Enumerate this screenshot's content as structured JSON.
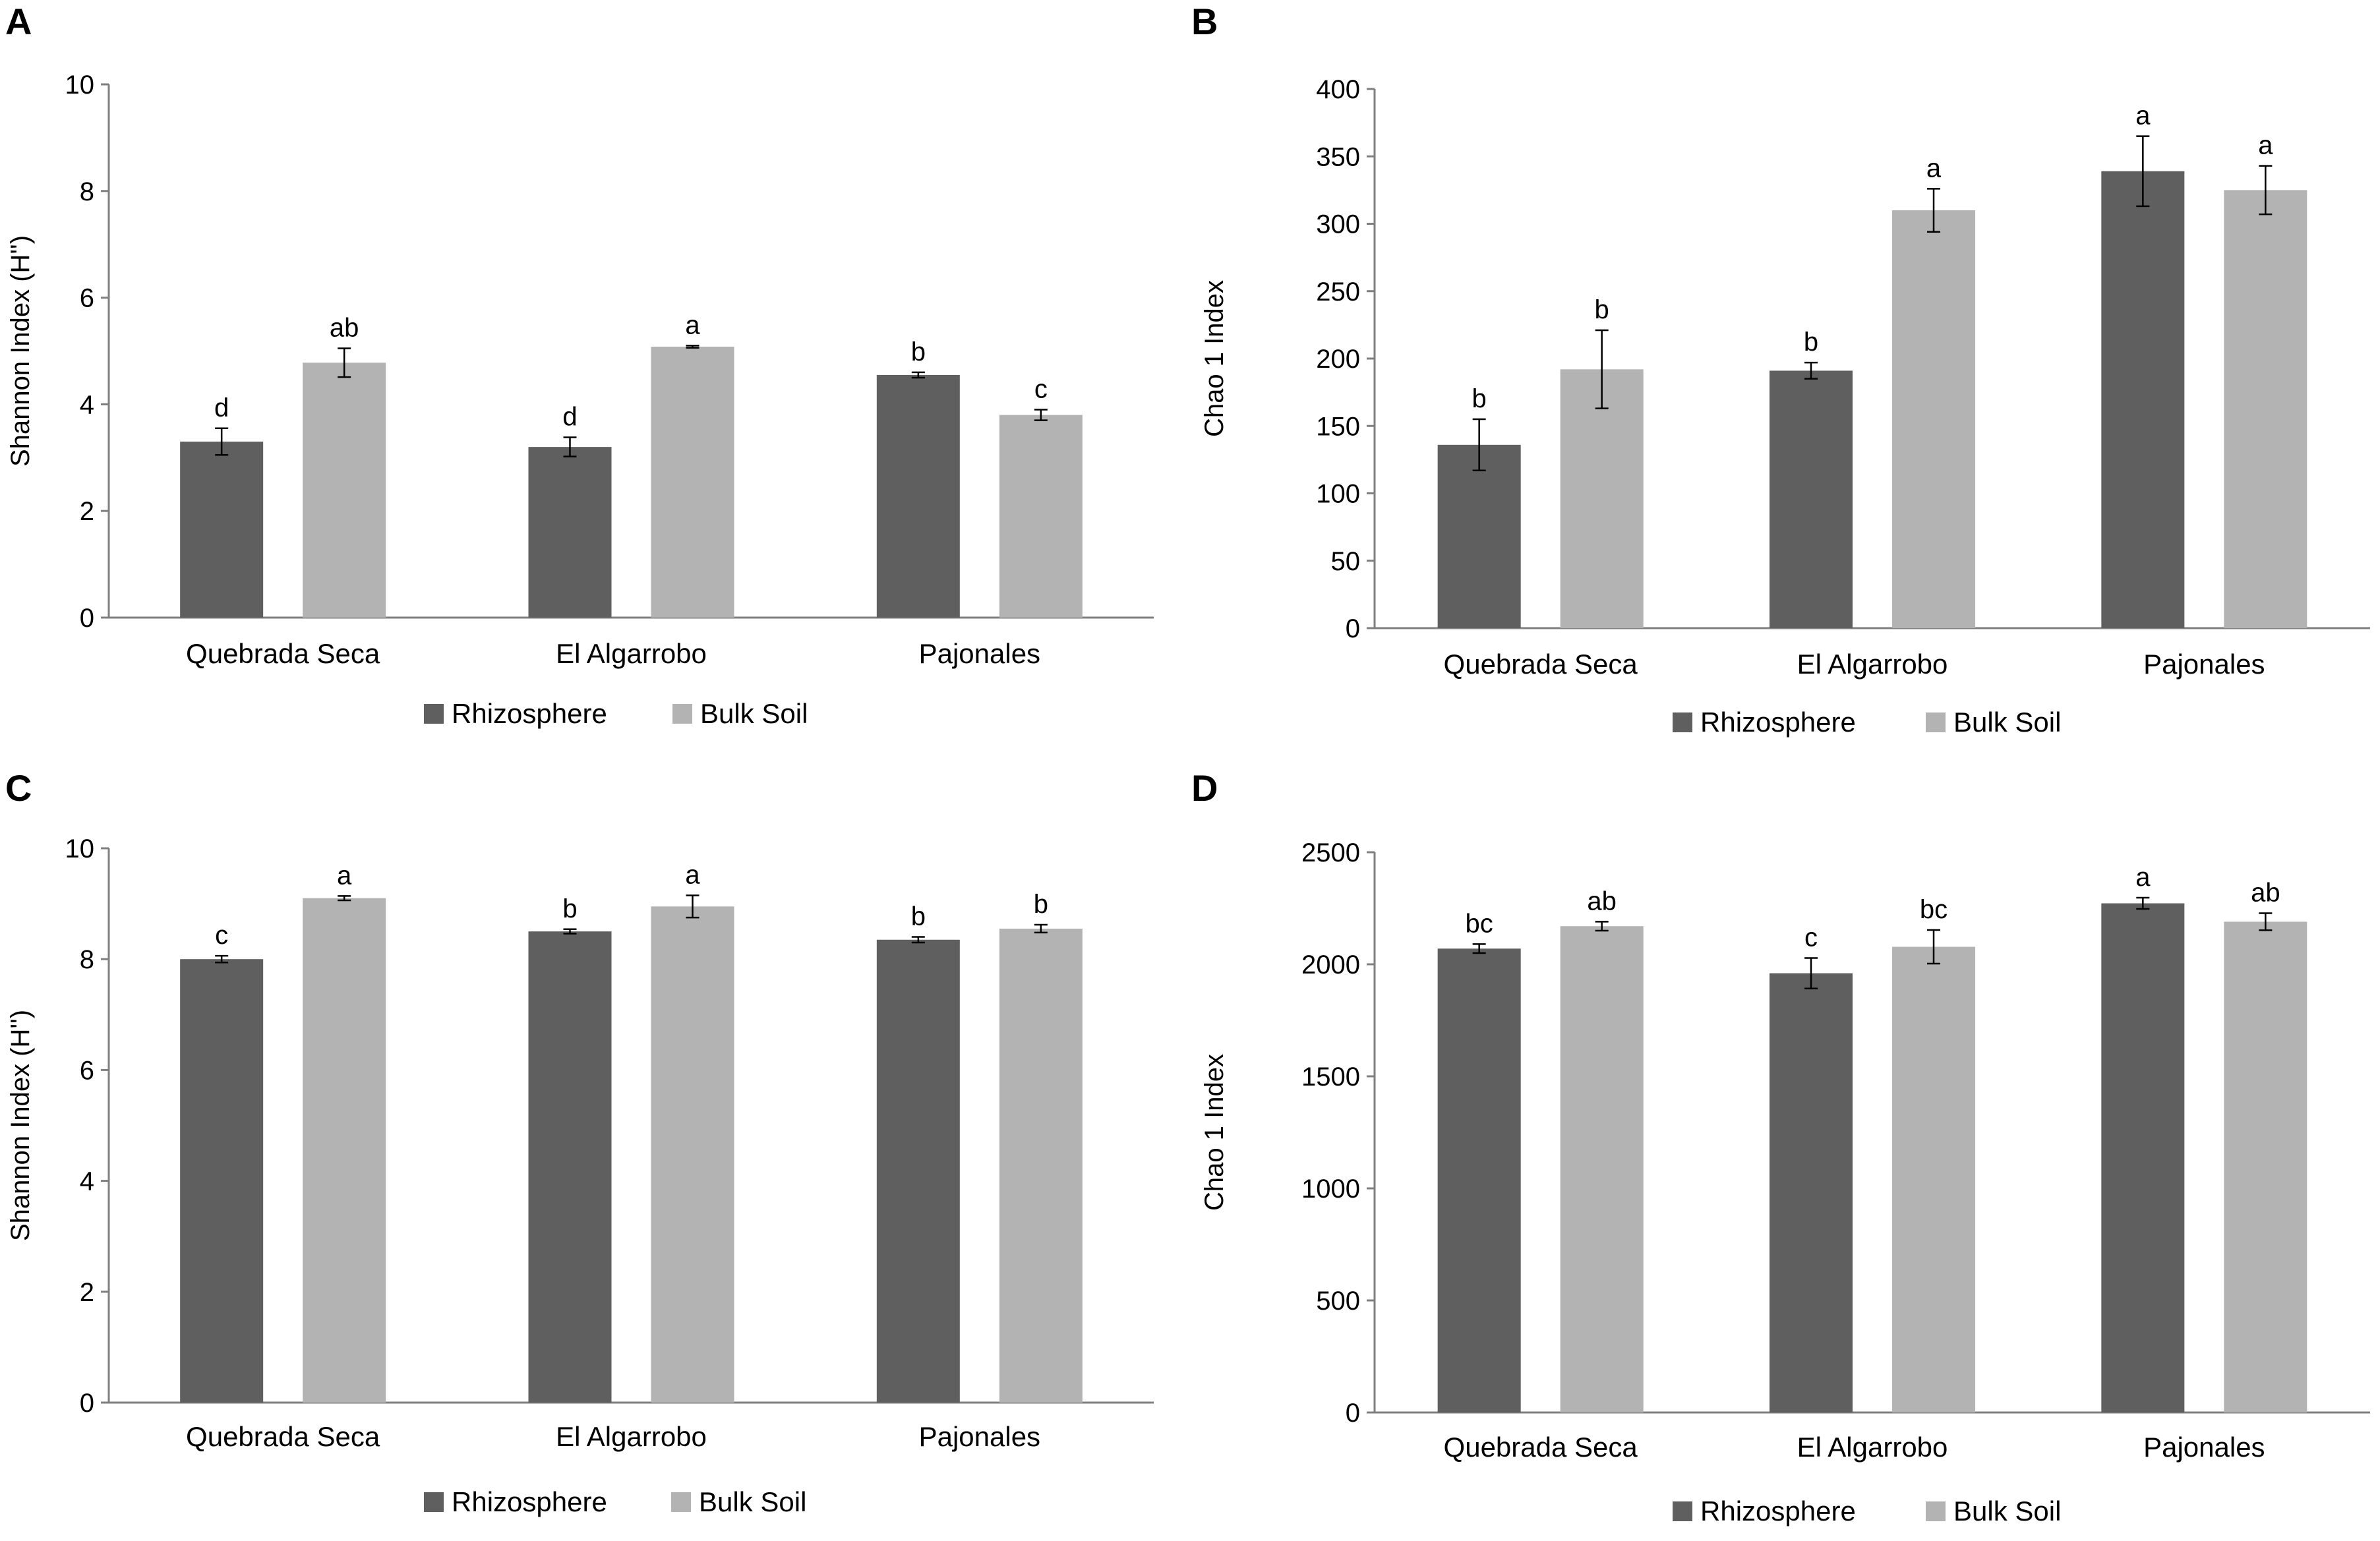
{
  "colors": {
    "rhizosphere": "#5f5f5f",
    "bulk_soil": "#b3b3b3",
    "axis": "#7f7f7f",
    "error": "#000000"
  },
  "chart_data": [
    {
      "panel": "A",
      "type": "bar",
      "ylabel": "Shannon Index (H'')",
      "xlabel": "",
      "ylim": [
        0,
        10
      ],
      "yticks": [
        0,
        2,
        4,
        6,
        8,
        10
      ],
      "categories": [
        "Quebrada Seca",
        "El Algarrobo",
        "Pajonales"
      ],
      "legend": [
        "Rhizosphere",
        "Bulk Soil"
      ],
      "series": [
        {
          "name": "Rhizosphere",
          "values": [
            3.3,
            3.2,
            4.55
          ],
          "errors": [
            0.25,
            0.18,
            0.05
          ],
          "labels": [
            "d",
            "d",
            "b"
          ]
        },
        {
          "name": "Bulk Soil",
          "values": [
            4.78,
            5.08,
            3.8
          ],
          "errors": [
            0.27,
            0.02,
            0.1
          ],
          "labels": [
            "ab",
            "a",
            "c"
          ]
        }
      ]
    },
    {
      "panel": "B",
      "type": "bar",
      "ylabel": "Chao 1 Index",
      "xlabel": "",
      "ylim": [
        0,
        400
      ],
      "yticks": [
        0,
        50,
        100,
        150,
        200,
        250,
        300,
        350,
        400
      ],
      "categories": [
        "Quebrada Seca",
        "El Algarrobo",
        "Pajonales"
      ],
      "legend": [
        "Rhizosphere",
        "Bulk Soil"
      ],
      "series": [
        {
          "name": "Rhizosphere",
          "values": [
            136,
            191,
            339
          ],
          "errors": [
            19,
            6,
            26
          ],
          "labels": [
            "b",
            "b",
            "a"
          ]
        },
        {
          "name": "Bulk Soil",
          "values": [
            192,
            310,
            325
          ],
          "errors": [
            29,
            16,
            18
          ],
          "labels": [
            "b",
            "a",
            "a"
          ]
        }
      ]
    },
    {
      "panel": "C",
      "type": "bar",
      "ylabel": "Shannon Index (H'')",
      "xlabel": "",
      "ylim": [
        0,
        10
      ],
      "yticks": [
        0,
        2,
        4,
        6,
        8,
        10
      ],
      "categories": [
        "Quebrada Seca",
        "El Algarrobo",
        "Pajonales"
      ],
      "legend": [
        "Rhizosphere",
        "Bulk Soil"
      ],
      "series": [
        {
          "name": "Rhizosphere",
          "values": [
            8.0,
            8.5,
            8.35
          ],
          "errors": [
            0.06,
            0.04,
            0.05
          ],
          "labels": [
            "c",
            "b",
            "b"
          ]
        },
        {
          "name": "Bulk Soil",
          "values": [
            9.1,
            8.95,
            8.55
          ],
          "errors": [
            0.04,
            0.2,
            0.07
          ],
          "labels": [
            "a",
            "a",
            "b"
          ]
        }
      ]
    },
    {
      "panel": "D",
      "type": "bar",
      "ylabel": "Chao 1 Index",
      "xlabel": "",
      "ylim": [
        0,
        2500
      ],
      "yticks": [
        0,
        500,
        1000,
        1500,
        2000,
        2500
      ],
      "categories": [
        "Quebrada Seca",
        "El Algarrobo",
        "Pajonales"
      ],
      "legend": [
        "Rhizosphere",
        "Bulk Soil"
      ],
      "series": [
        {
          "name": "Rhizosphere",
          "values": [
            2070,
            1960,
            2272
          ],
          "errors": [
            20,
            68,
            25
          ],
          "labels": [
            "bc",
            "c",
            "a"
          ]
        },
        {
          "name": "Bulk Soil",
          "values": [
            2170,
            2078,
            2190
          ],
          "errors": [
            20,
            75,
            38
          ],
          "labels": [
            "ab",
            "bc",
            "ab"
          ]
        }
      ]
    }
  ]
}
